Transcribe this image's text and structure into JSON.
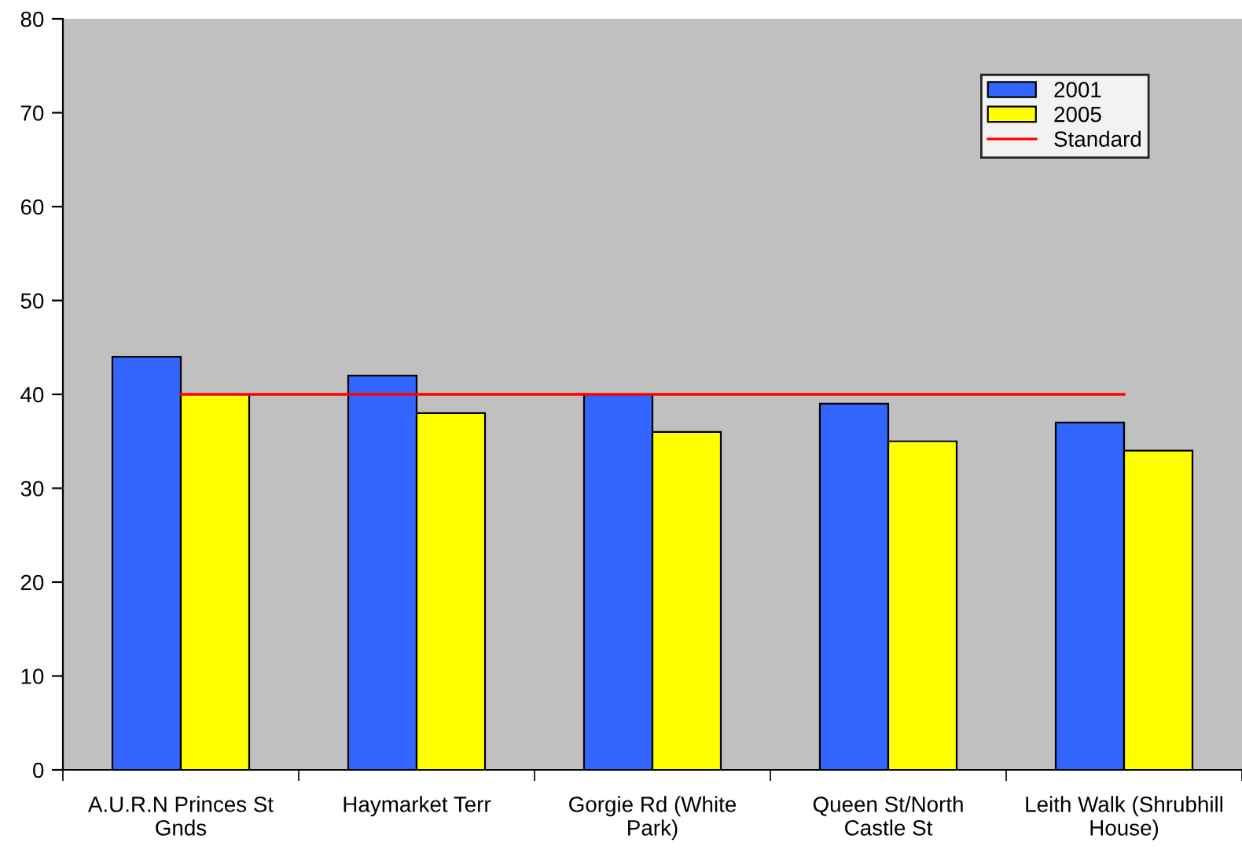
{
  "chart_data": {
    "type": "bar",
    "categories": [
      "A.U.R.N Princes St\nGnds",
      "Haymarket Terr",
      "Gorgie Rd (White\nPark)",
      "Queen St/North\nCastle St",
      "Leith Walk (Shrubhill\nHouse)"
    ],
    "series": [
      {
        "name": "2001",
        "color": "#3366ff",
        "values": [
          44,
          42,
          40,
          39,
          37
        ]
      },
      {
        "name": "2005",
        "color": "#ffff00",
        "values": [
          40,
          38,
          36,
          35,
          34
        ]
      },
      {
        "name": "Standard",
        "type": "line",
        "color": "#ff0000",
        "values": [
          40,
          40,
          40,
          40,
          40
        ]
      }
    ],
    "ylim": [
      0,
      80
    ],
    "yticks": [
      0,
      10,
      20,
      30,
      40,
      50,
      60,
      70,
      80
    ],
    "grid": false,
    "legend": "top right"
  }
}
